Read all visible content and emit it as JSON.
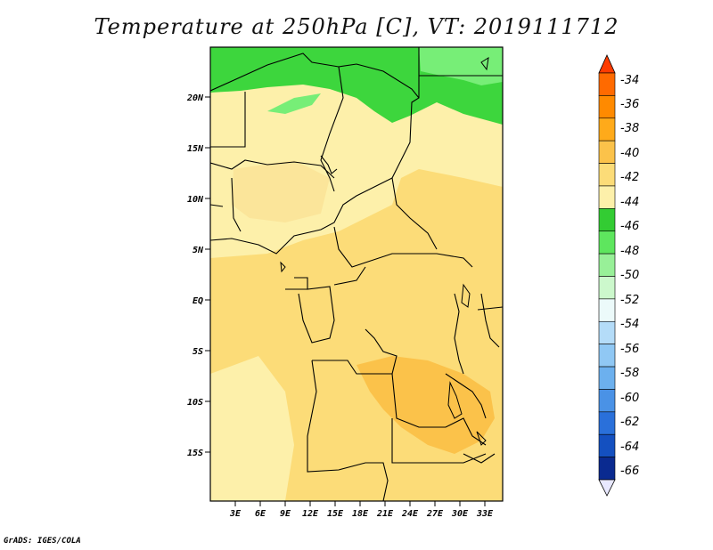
{
  "title": "Temperature at 250hPa [C], VT: 2019111712",
  "credit": "GrADS: IGES/COLA",
  "map": {
    "lat_labels": [
      "20N",
      "15N",
      "10N",
      "5N",
      "EQ",
      "5S",
      "10S",
      "15S"
    ],
    "lon_labels": [
      "3E",
      "6E",
      "9E",
      "12E",
      "15E",
      "18E",
      "21E",
      "24E",
      "27E",
      "30E",
      "33E"
    ]
  },
  "colorbar": {
    "labels": [
      "-34",
      "-36",
      "-38",
      "-40",
      "-42",
      "-44",
      "-46",
      "-48",
      "-50",
      "-52",
      "-54",
      "-56",
      "-58",
      "-60",
      "-62",
      "-64",
      "-66"
    ],
    "colors": [
      "#ff6a00",
      "#ff8a00",
      "#ffaa1a",
      "#fbc24a",
      "#fcdc78",
      "#fdf0aa",
      "#33cc33",
      "#5ee65e",
      "#98f098",
      "#ccf8cc",
      "#ecfafa",
      "#b4dcf8",
      "#90c8f4",
      "#6cb0ee",
      "#4a92e6",
      "#2a70da",
      "#1450c0",
      "#0a2a90"
    ],
    "top_color": "#ff3c00",
    "bottom_color": "#e8e8ff"
  }
}
